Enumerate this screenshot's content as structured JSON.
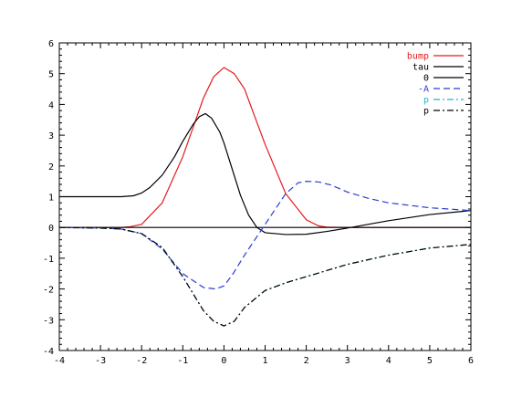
{
  "chart_data": {
    "type": "line",
    "title": "",
    "xlabel": "",
    "ylabel": "",
    "xlim": [
      -4,
      6
    ],
    "ylim": [
      -4,
      6
    ],
    "xticks": [
      -4,
      -3,
      -2,
      -1,
      0,
      1,
      2,
      3,
      4,
      5,
      6
    ],
    "yticks": [
      -4,
      -3,
      -2,
      -1,
      0,
      1,
      2,
      3,
      4,
      5,
      6
    ],
    "grid": false,
    "legend_position": "top-right",
    "series": [
      {
        "name": "bump",
        "color": "#e41a1c",
        "dash": "solid",
        "x": [
          -4,
          -3,
          -2.5,
          -2.3,
          -2,
          -1.5,
          -1,
          -0.5,
          -0.25,
          0,
          0.25,
          0.5,
          1,
          1.5,
          2,
          2.3,
          2.5,
          3,
          4,
          5,
          6
        ],
        "y": [
          0,
          0,
          0,
          0.02,
          0.1,
          0.8,
          2.3,
          4.2,
          4.9,
          5.2,
          5.0,
          4.5,
          2.7,
          1.1,
          0.25,
          0.05,
          0.01,
          0,
          0,
          0,
          0
        ]
      },
      {
        "name": "tau",
        "color": "#000000",
        "dash": "solid",
        "x": [
          -4,
          -3,
          -2.5,
          -2.2,
          -2,
          -1.8,
          -1.5,
          -1.2,
          -1,
          -0.75,
          -0.6,
          -0.45,
          -0.3,
          -0.1,
          0,
          0.2,
          0.4,
          0.6,
          0.8,
          1,
          1.5,
          2,
          2.5,
          3,
          3.5,
          4,
          5,
          6
        ],
        "y": [
          1.0,
          1.0,
          1.0,
          1.03,
          1.12,
          1.3,
          1.7,
          2.3,
          2.8,
          3.35,
          3.6,
          3.7,
          3.55,
          3.1,
          2.75,
          1.9,
          1.05,
          0.4,
          0.0,
          -0.17,
          -0.23,
          -0.22,
          -0.13,
          -0.02,
          0.1,
          0.22,
          0.42,
          0.55
        ]
      },
      {
        "name": "0",
        "color": "#000000",
        "dash": "solid",
        "x": [
          -4,
          6
        ],
        "y": [
          0,
          0
        ]
      },
      {
        "name": "-A",
        "color": "#2b3bd4",
        "dash": "dashed",
        "x": [
          -4,
          -3,
          -2.5,
          -2,
          -1.5,
          -1,
          -0.5,
          -0.2,
          0,
          0.2,
          0.5,
          1,
          1.5,
          1.8,
          2,
          2.3,
          2.6,
          3,
          3.5,
          4,
          5,
          6
        ],
        "y": [
          0,
          -0.02,
          -0.05,
          -0.2,
          -0.7,
          -1.5,
          -1.95,
          -2.0,
          -1.9,
          -1.55,
          -0.9,
          0.1,
          1.1,
          1.45,
          1.5,
          1.48,
          1.38,
          1.15,
          0.95,
          0.8,
          0.64,
          0.55
        ]
      },
      {
        "name": "p",
        "color": "#1fb5d1",
        "dash": "dashdot",
        "x": [
          -4,
          -3,
          -2.5,
          -2,
          -1.5,
          -1,
          -0.5,
          -0.25,
          0,
          0.25,
          0.5,
          1,
          1.5,
          2,
          3,
          4,
          5,
          6
        ],
        "y": [
          0,
          -0.02,
          -0.05,
          -0.2,
          -0.65,
          -1.6,
          -2.7,
          -3.05,
          -3.2,
          -3.05,
          -2.6,
          -2.05,
          -1.8,
          -1.6,
          -1.2,
          -0.9,
          -0.67,
          -0.55
        ]
      },
      {
        "name": "p",
        "color": "#000000",
        "dash": "dashdot",
        "x": [
          -4,
          -3,
          -2.5,
          -2,
          -1.5,
          -1,
          -0.5,
          -0.25,
          0,
          0.25,
          0.5,
          1,
          1.5,
          2,
          3,
          4,
          5,
          6
        ],
        "y": [
          0,
          -0.02,
          -0.05,
          -0.2,
          -0.65,
          -1.6,
          -2.7,
          -3.05,
          -3.2,
          -3.05,
          -2.6,
          -2.05,
          -1.8,
          -1.6,
          -1.2,
          -0.9,
          -0.67,
          -0.55
        ]
      }
    ]
  }
}
